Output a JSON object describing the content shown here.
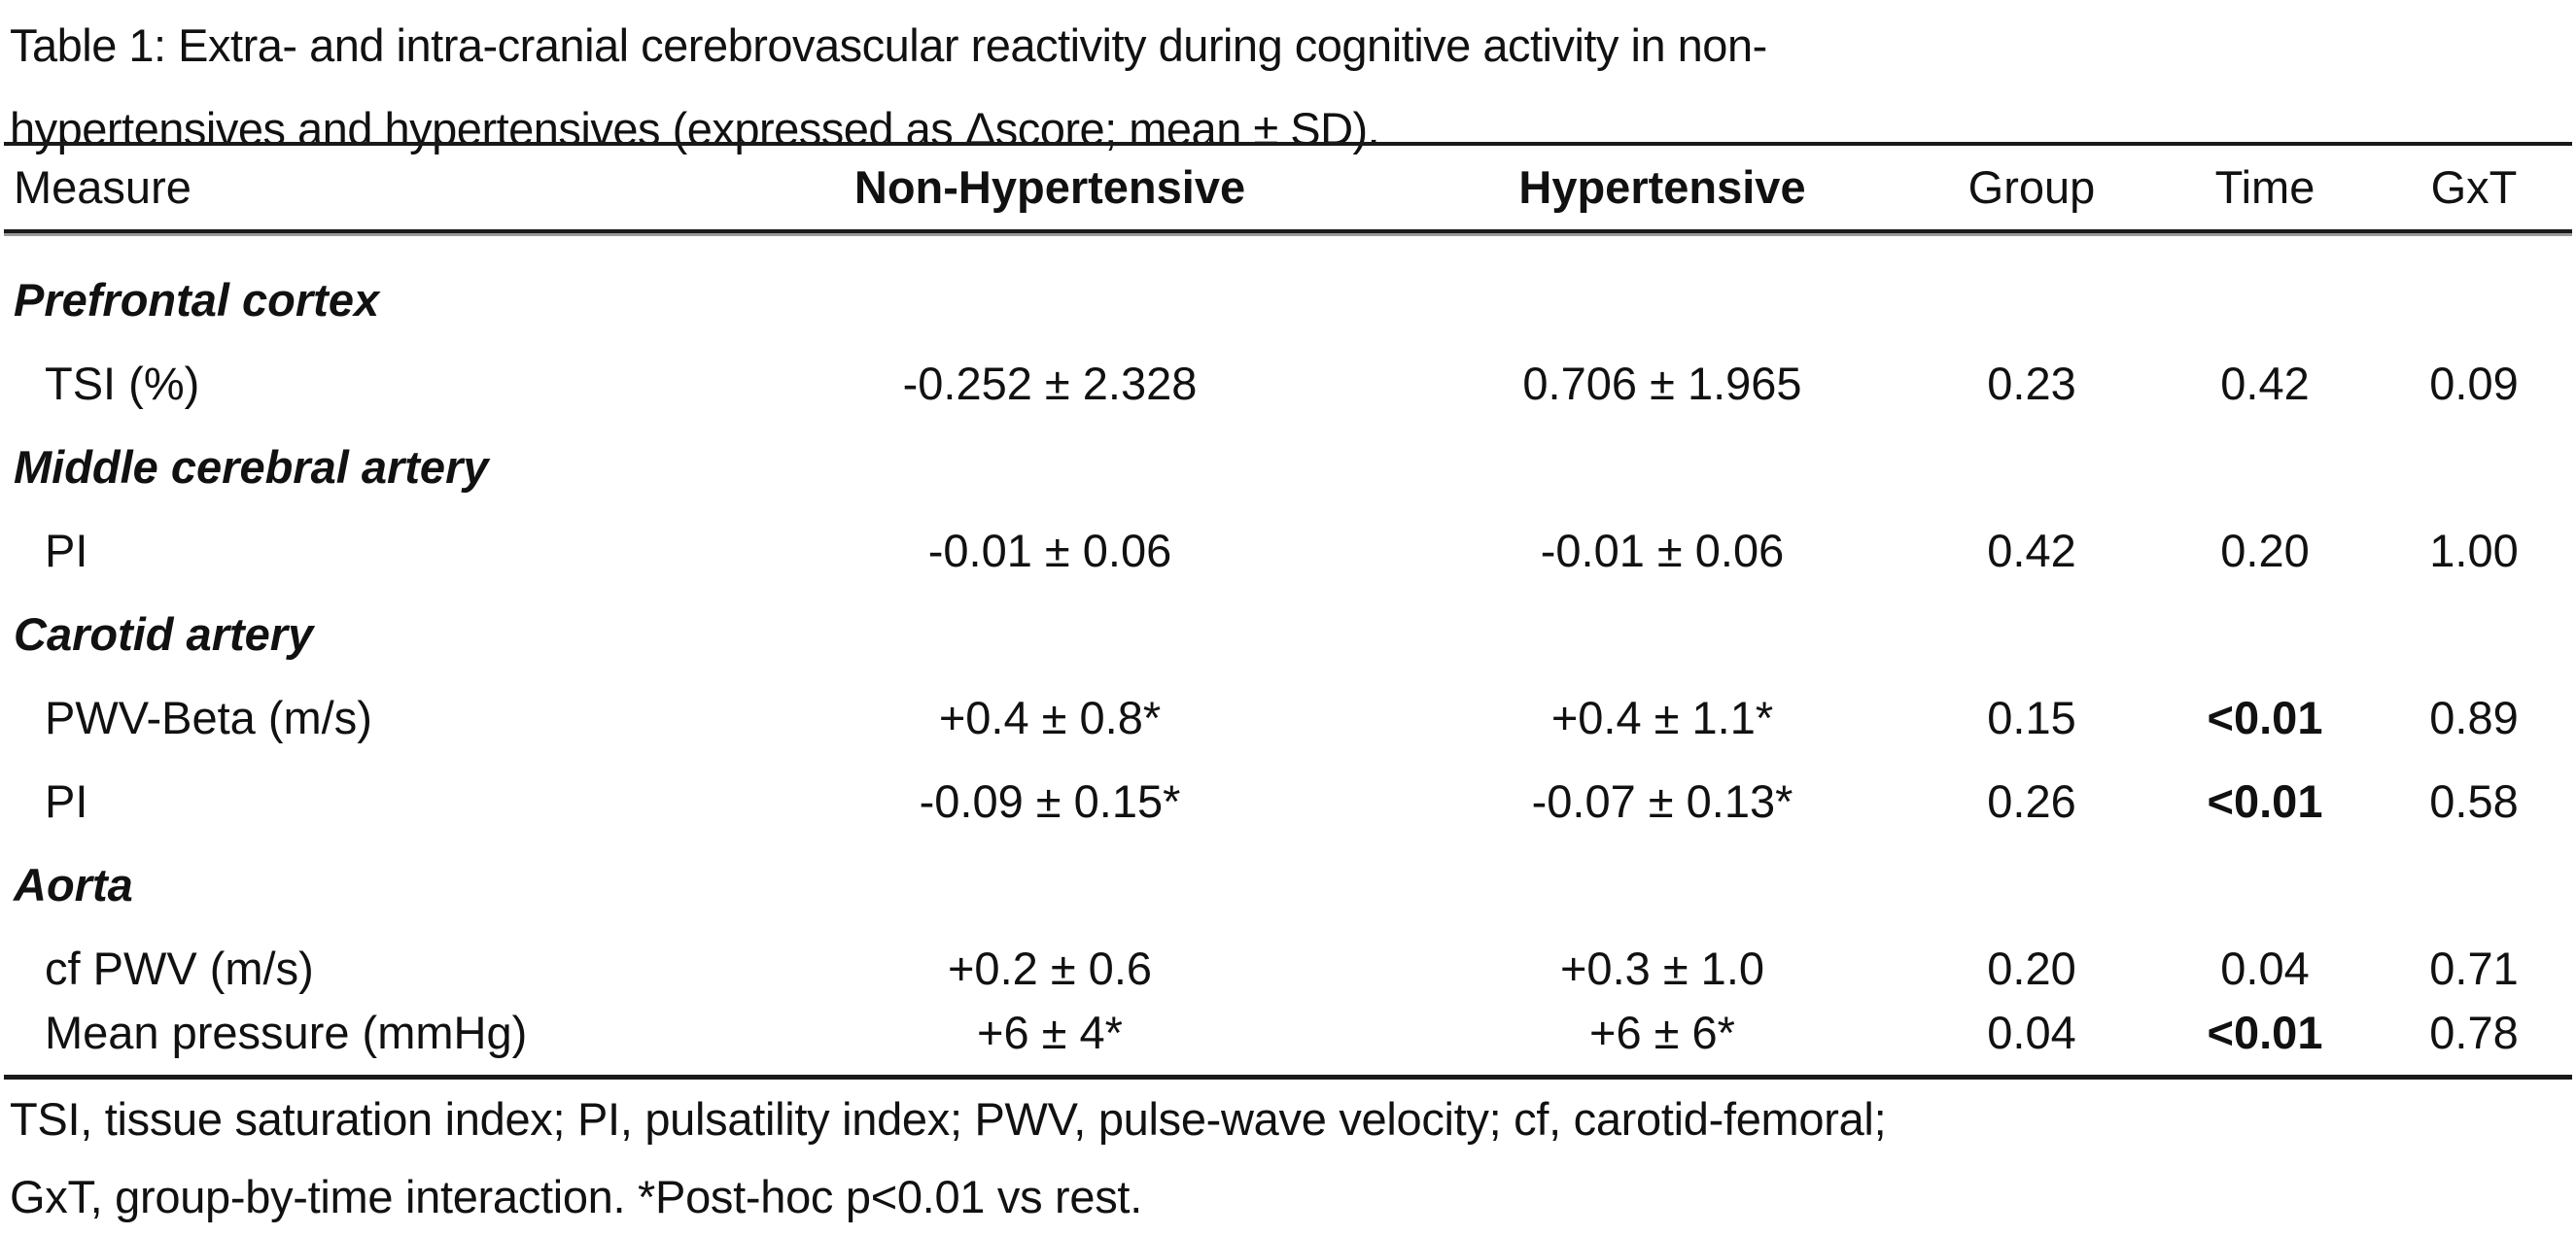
{
  "table": {
    "caption_line1": "Table 1: Extra- and intra-cranial cerebrovascular reactivity during cognitive activity in non-",
    "caption_line2": "hypertensives and hypertensives (expressed as Δscore; mean ± SD).",
    "headers": {
      "measure": "Measure",
      "non_hypertensive": "Non-Hypertensive",
      "hypertensive": "Hypertensive",
      "group": "Group",
      "time": "Time",
      "gxt": "GxT"
    },
    "sections": [
      {
        "title": "Prefrontal cortex",
        "rows": [
          {
            "measure": "TSI (%)",
            "non_hypertensive": "-0.252 ± 2.328",
            "hypertensive": "0.706 ± 1.965",
            "group": "0.23",
            "time": "0.42",
            "gxt": "0.09",
            "time_bold": false
          }
        ]
      },
      {
        "title": "Middle cerebral artery",
        "rows": [
          {
            "measure": "PI",
            "non_hypertensive": "-0.01 ± 0.06",
            "hypertensive": "-0.01 ± 0.06",
            "group": "0.42",
            "time": "0.20",
            "gxt": "1.00",
            "time_bold": false
          }
        ]
      },
      {
        "title": "Carotid artery",
        "rows": [
          {
            "measure": "PWV-Beta (m/s)",
            "non_hypertensive": "+0.4 ± 0.8*",
            "hypertensive": "+0.4 ± 1.1*",
            "group": "0.15",
            "time": "<0.01",
            "gxt": "0.89",
            "time_bold": true
          },
          {
            "measure": "PI",
            "non_hypertensive": "-0.09 ± 0.15*",
            "hypertensive": "-0.07 ± 0.13*",
            "group": "0.26",
            "time": "<0.01",
            "gxt": "0.58",
            "time_bold": true
          }
        ]
      },
      {
        "title": "Aorta",
        "rows": [
          {
            "measure": "cf PWV (m/s)",
            "non_hypertensive": "+0.2 ± 0.6",
            "hypertensive": "+0.3 ± 1.0",
            "group": "0.20",
            "time": "0.04",
            "gxt": "0.71",
            "time_bold": false
          },
          {
            "measure": "Mean pressure (mmHg)",
            "non_hypertensive": "+6 ± 4*",
            "hypertensive": "+6 ± 6*",
            "group": "0.04",
            "time": "<0.01",
            "gxt": "0.78",
            "time_bold": true
          }
        ]
      }
    ],
    "footnote_line1": "TSI, tissue saturation index; PI, pulsatility index; PWV, pulse-wave velocity; cf, carotid-femoral;",
    "footnote_line2": "GxT, group-by-time interaction. *Post-hoc p<0.01 vs rest."
  }
}
